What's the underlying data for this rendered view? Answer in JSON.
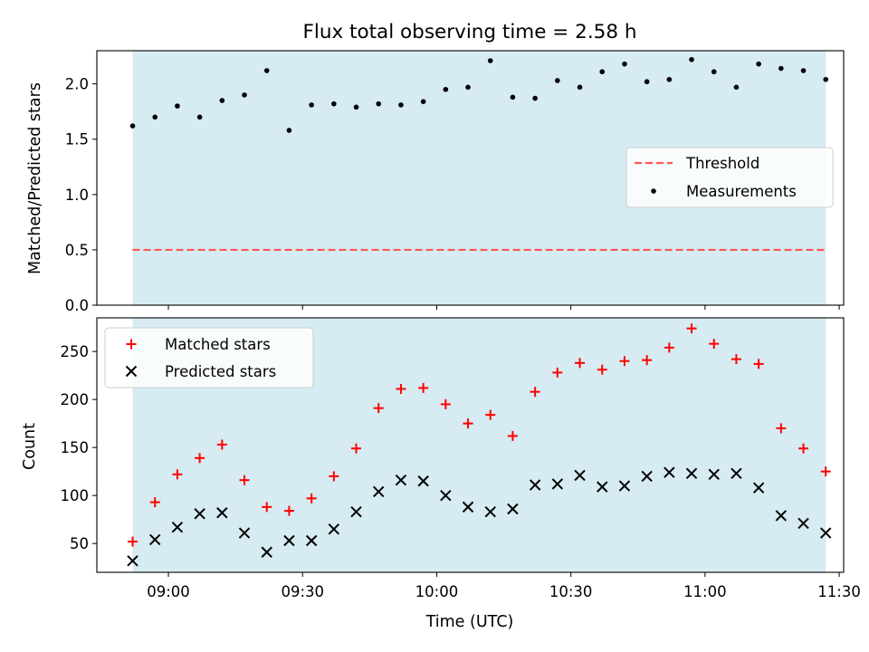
{
  "figure": {
    "title": "Flux total observing time = 2.58 h"
  },
  "colors": {
    "span_fill": "#add8e6",
    "threshold": "#ff5555",
    "measurements": "#000000",
    "matched": "#ff0000",
    "predicted": "#000000"
  },
  "chart_data": [
    {
      "type": "scatter",
      "panel": "top",
      "xlabel": "",
      "ylabel": "Matched/Predicted stars",
      "ylim": [
        0,
        2.3
      ],
      "yticks": [
        0.0,
        0.5,
        1.0,
        1.5,
        2.0
      ],
      "ytick_labels": [
        "0.0",
        "0.5",
        "1.0",
        "1.5",
        "2.0"
      ],
      "xlim": [
        "08:44",
        "11:31"
      ],
      "grid": false,
      "legend_position": "center-right",
      "legend": [
        "Threshold",
        "Measurements"
      ],
      "shaded_span": [
        "08:52",
        "11:27"
      ],
      "threshold": {
        "name": "Threshold",
        "style": "dashed",
        "x": [
          "08:52",
          "11:27"
        ],
        "value": 0.5
      },
      "series": [
        {
          "name": "Measurements",
          "marker": "dot",
          "x": [
            "08:52",
            "08:57",
            "09:02",
            "09:07",
            "09:12",
            "09:17",
            "09:22",
            "09:27",
            "09:32",
            "09:37",
            "09:42",
            "09:47",
            "09:52",
            "09:57",
            "10:02",
            "10:07",
            "10:12",
            "10:17",
            "10:22",
            "10:27",
            "10:32",
            "10:37",
            "10:42",
            "10:47",
            "10:52",
            "10:57",
            "11:02",
            "11:07",
            "11:12",
            "11:17",
            "11:22",
            "11:27"
          ],
          "y": [
            1.62,
            1.7,
            1.8,
            1.7,
            1.85,
            1.9,
            2.12,
            1.58,
            1.81,
            1.82,
            1.79,
            1.82,
            1.81,
            1.84,
            1.95,
            1.97,
            2.21,
            1.88,
            1.87,
            2.03,
            1.97,
            2.11,
            2.18,
            2.02,
            2.04,
            2.22,
            2.11,
            1.97,
            2.18,
            2.14,
            2.12,
            2.04
          ]
        }
      ]
    },
    {
      "type": "scatter",
      "panel": "bottom",
      "xlabel": "Time (UTC)",
      "ylabel": "Count",
      "ylim": [
        20,
        285
      ],
      "yticks": [
        50,
        100,
        150,
        200,
        250
      ],
      "ytick_labels": [
        "50",
        "100",
        "150",
        "200",
        "250"
      ],
      "xlim": [
        "08:44",
        "11:31"
      ],
      "xticks": [
        "09:00",
        "09:30",
        "10:00",
        "10:30",
        "11:00",
        "11:30"
      ],
      "xtick_labels": [
        "09:00",
        "09:30",
        "10:00",
        "10:30",
        "11:00",
        "11:30"
      ],
      "grid": false,
      "legend_position": "top-left",
      "legend": [
        "Matched stars",
        "Predicted stars"
      ],
      "shaded_span": [
        "08:52",
        "11:27"
      ],
      "x": [
        "08:52",
        "08:57",
        "09:02",
        "09:07",
        "09:12",
        "09:17",
        "09:22",
        "09:27",
        "09:32",
        "09:37",
        "09:42",
        "09:47",
        "09:52",
        "09:57",
        "10:02",
        "10:07",
        "10:12",
        "10:17",
        "10:22",
        "10:27",
        "10:32",
        "10:37",
        "10:42",
        "10:47",
        "10:52",
        "10:57",
        "11:02",
        "11:07",
        "11:12",
        "11:17",
        "11:22",
        "11:27"
      ],
      "series": [
        {
          "name": "Matched stars",
          "marker": "plus",
          "values": [
            52,
            93,
            122,
            139,
            153,
            116,
            88,
            84,
            97,
            120,
            149,
            191,
            211,
            212,
            195,
            175,
            184,
            162,
            208,
            228,
            238,
            231,
            240,
            241,
            254,
            274,
            258,
            242,
            237,
            170,
            149,
            125
          ]
        },
        {
          "name": "Predicted stars",
          "marker": "x",
          "values": [
            32,
            54,
            67,
            81,
            82,
            61,
            41,
            53,
            53,
            65,
            83,
            104,
            116,
            115,
            100,
            88,
            83,
            86,
            111,
            112,
            121,
            109,
            110,
            120,
            124,
            123,
            122,
            123,
            108,
            79,
            71,
            61
          ]
        }
      ]
    }
  ]
}
